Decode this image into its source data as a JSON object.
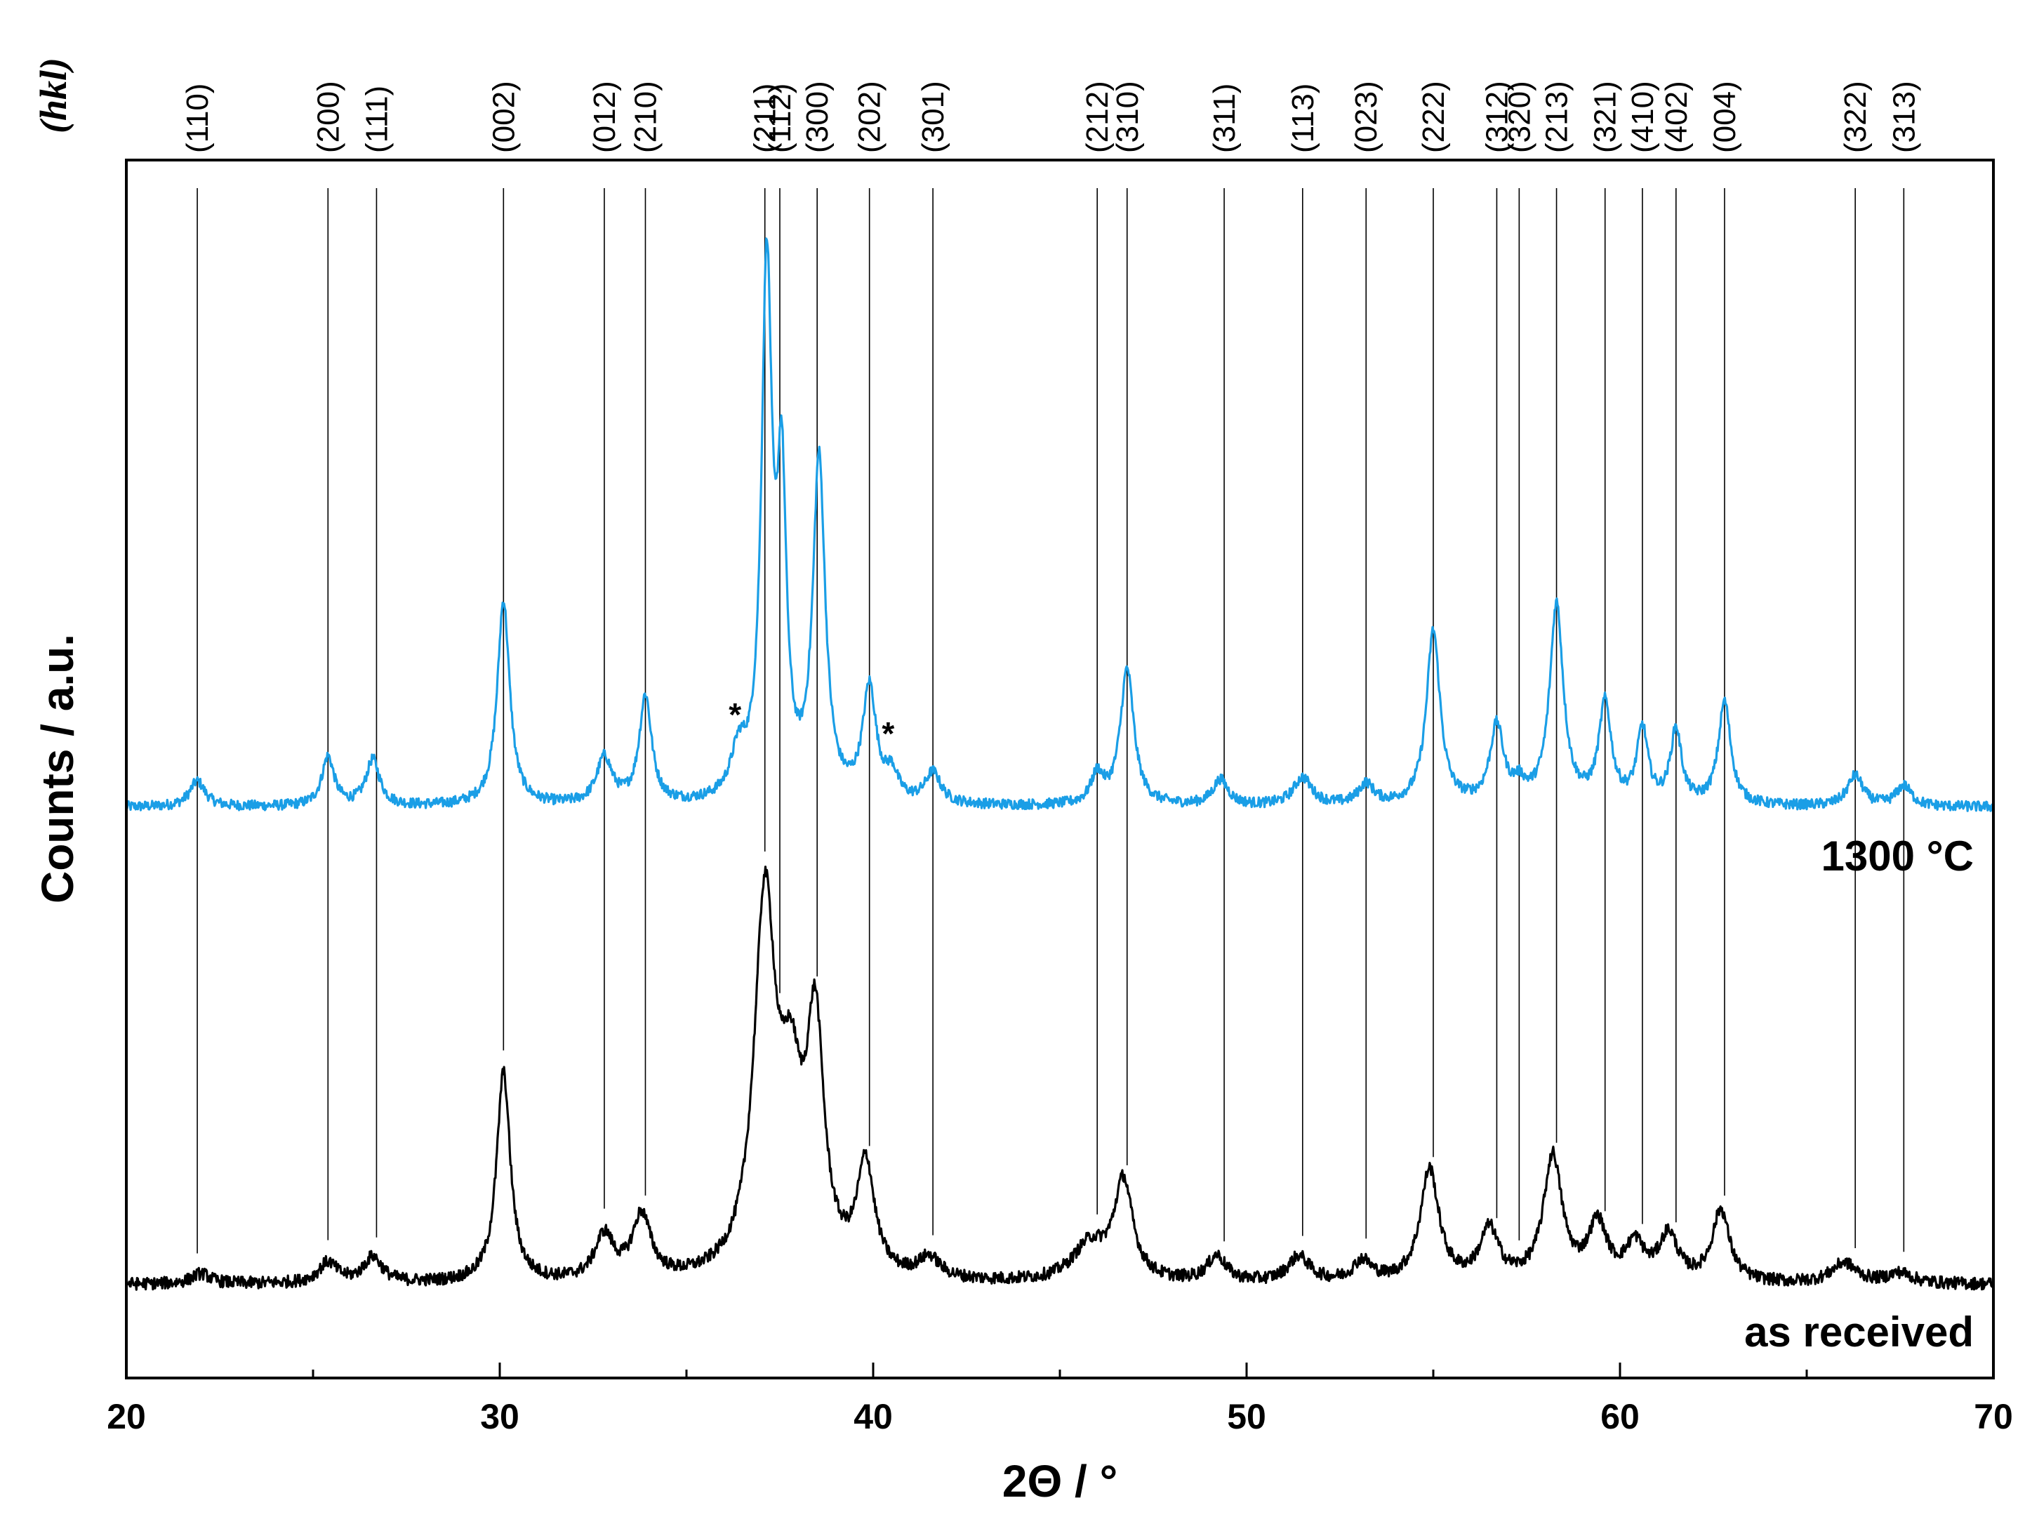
{
  "chart_data": {
    "type": "line",
    "xlabel": "2Θ / °",
    "ylabel": "Counts / a.u.",
    "xlim": [
      20,
      70
    ],
    "x_ticks": [
      "20",
      "30",
      "40",
      "50",
      "60",
      "70"
    ],
    "x_minor_step": 5,
    "y_ticks": "none (arbitrary units)",
    "reflections_header": "(hkl)",
    "reflections": [
      {
        "hkl": "(110)",
        "x": 21.9
      },
      {
        "hkl": "(200)",
        "x": 25.4
      },
      {
        "hkl": "(111)",
        "x": 26.7
      },
      {
        "hkl": "(002)",
        "x": 30.1
      },
      {
        "hkl": "(012)",
        "x": 32.8
      },
      {
        "hkl": "(210)",
        "x": 33.9
      },
      {
        "hkl": "(211)",
        "x": 37.1
      },
      {
        "hkl": "(112)",
        "x": 37.5
      },
      {
        "hkl": "(300)",
        "x": 38.5
      },
      {
        "hkl": "(202)",
        "x": 39.9
      },
      {
        "hkl": "(301)",
        "x": 41.6
      },
      {
        "hkl": "(212)",
        "x": 46.0
      },
      {
        "hkl": "(310)",
        "x": 46.8
      },
      {
        "hkl": "(311)",
        "x": 49.4
      },
      {
        "hkl": "(113)",
        "x": 51.5
      },
      {
        "hkl": "(023)",
        "x": 53.2
      },
      {
        "hkl": "(222)",
        "x": 55.0
      },
      {
        "hkl": "(312)",
        "x": 56.7
      },
      {
        "hkl": "(320)",
        "x": 57.3
      },
      {
        "hkl": "(213)",
        "x": 58.3
      },
      {
        "hkl": "(321)",
        "x": 59.6
      },
      {
        "hkl": "(410)",
        "x": 60.6
      },
      {
        "hkl": "(402)",
        "x": 61.5
      },
      {
        "hkl": "(004)",
        "x": 62.8
      },
      {
        "hkl": "(322)",
        "x": 66.3
      },
      {
        "hkl": "(313)",
        "x": 67.6
      }
    ],
    "series": [
      {
        "name": "1300 °C",
        "color": "#1a9ee6",
        "baseline": 0.35,
        "noise": 0.05,
        "peaks": [
          {
            "x": 21.9,
            "h": 0.25,
            "w": 0.25
          },
          {
            "x": 25.4,
            "h": 0.48,
            "w": 0.2
          },
          {
            "x": 26.6,
            "h": 0.45,
            "w": 0.22
          },
          {
            "x": 30.1,
            "h": 2.0,
            "w": 0.2
          },
          {
            "x": 32.8,
            "h": 0.45,
            "w": 0.25
          },
          {
            "x": 33.9,
            "h": 1.05,
            "w": 0.2
          },
          {
            "x": 36.4,
            "h": 0.42,
            "w": 0.25
          },
          {
            "x": 37.15,
            "h": 5.1,
            "w": 0.17
          },
          {
            "x": 37.55,
            "h": 2.85,
            "w": 0.15
          },
          {
            "x": 38.55,
            "h": 3.3,
            "w": 0.2
          },
          {
            "x": 39.9,
            "h": 1.1,
            "w": 0.22
          },
          {
            "x": 40.5,
            "h": 0.25,
            "w": 0.2
          },
          {
            "x": 41.6,
            "h": 0.3,
            "w": 0.25
          },
          {
            "x": 46.0,
            "h": 0.28,
            "w": 0.2
          },
          {
            "x": 46.8,
            "h": 1.33,
            "w": 0.22
          },
          {
            "x": 49.3,
            "h": 0.25,
            "w": 0.25
          },
          {
            "x": 51.5,
            "h": 0.27,
            "w": 0.3
          },
          {
            "x": 53.2,
            "h": 0.2,
            "w": 0.25
          },
          {
            "x": 55.0,
            "h": 1.7,
            "w": 0.22
          },
          {
            "x": 56.7,
            "h": 0.75,
            "w": 0.22
          },
          {
            "x": 57.3,
            "h": 0.15,
            "w": 0.2
          },
          {
            "x": 58.3,
            "h": 1.95,
            "w": 0.22
          },
          {
            "x": 59.6,
            "h": 0.97,
            "w": 0.2
          },
          {
            "x": 60.6,
            "h": 0.72,
            "w": 0.18
          },
          {
            "x": 61.5,
            "h": 0.72,
            "w": 0.18
          },
          {
            "x": 62.8,
            "h": 1.01,
            "w": 0.2
          },
          {
            "x": 66.3,
            "h": 0.3,
            "w": 0.25
          },
          {
            "x": 67.6,
            "h": 0.2,
            "w": 0.25
          }
        ],
        "markers": [
          {
            "label": "*",
            "x": 36.3
          },
          {
            "label": "*",
            "x": 40.4
          }
        ]
      },
      {
        "name": "as received",
        "color": "#000000",
        "baseline": 0.35,
        "noise": 0.06,
        "peaks": [
          {
            "x": 22.0,
            "h": 0.1,
            "w": 0.3
          },
          {
            "x": 25.4,
            "h": 0.2,
            "w": 0.3
          },
          {
            "x": 26.6,
            "h": 0.25,
            "w": 0.3
          },
          {
            "x": 30.1,
            "h": 2.05,
            "w": 0.22
          },
          {
            "x": 32.8,
            "h": 0.43,
            "w": 0.3
          },
          {
            "x": 33.8,
            "h": 0.62,
            "w": 0.3
          },
          {
            "x": 37.1,
            "h": 3.6,
            "w": 0.35
          },
          {
            "x": 37.8,
            "h": 1.5,
            "w": 0.35
          },
          {
            "x": 38.45,
            "h": 2.3,
            "w": 0.28
          },
          {
            "x": 39.8,
            "h": 1.07,
            "w": 0.28
          },
          {
            "x": 41.5,
            "h": 0.2,
            "w": 0.35
          },
          {
            "x": 45.8,
            "h": 0.35,
            "w": 0.55
          },
          {
            "x": 46.7,
            "h": 0.95,
            "w": 0.3
          },
          {
            "x": 49.2,
            "h": 0.25,
            "w": 0.3
          },
          {
            "x": 51.4,
            "h": 0.25,
            "w": 0.35
          },
          {
            "x": 53.1,
            "h": 0.2,
            "w": 0.3
          },
          {
            "x": 54.9,
            "h": 1.1,
            "w": 0.3
          },
          {
            "x": 56.5,
            "h": 0.5,
            "w": 0.3
          },
          {
            "x": 58.2,
            "h": 1.22,
            "w": 0.3
          },
          {
            "x": 59.4,
            "h": 0.55,
            "w": 0.3
          },
          {
            "x": 60.4,
            "h": 0.35,
            "w": 0.3
          },
          {
            "x": 61.3,
            "h": 0.45,
            "w": 0.3
          },
          {
            "x": 62.7,
            "h": 0.7,
            "w": 0.28
          },
          {
            "x": 66.0,
            "h": 0.2,
            "w": 0.4
          },
          {
            "x": 67.5,
            "h": 0.1,
            "w": 0.4
          }
        ]
      }
    ]
  }
}
